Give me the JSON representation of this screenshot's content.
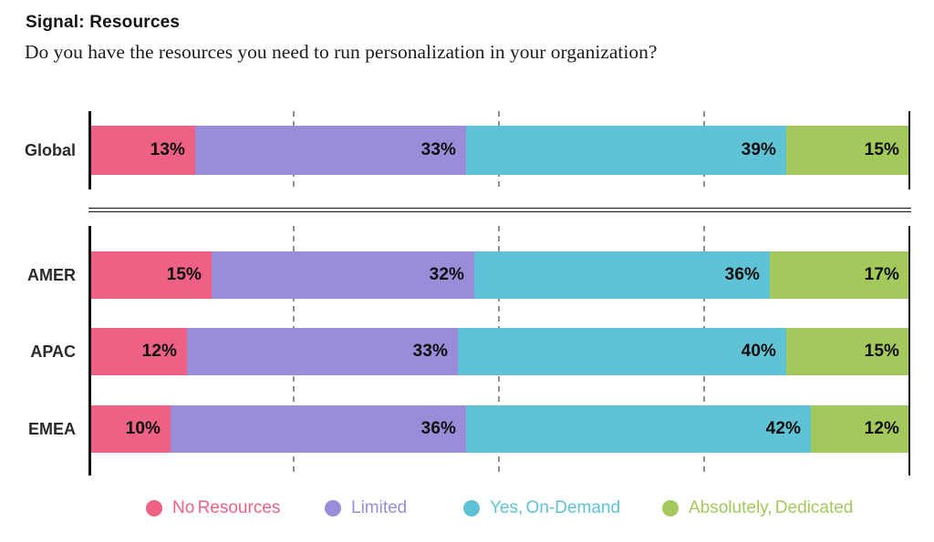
{
  "header": {
    "title": "Signal: Resources",
    "question": "Do you have the resources you need to run personalization in your organization?"
  },
  "chart_data": {
    "type": "bar",
    "orientation": "horizontal",
    "stacked": true,
    "value_unit": "%",
    "xlim": [
      0,
      100
    ],
    "gridlines_at_percent": [
      25,
      50,
      75
    ],
    "grid_style": "dashed-vertical",
    "legend_position": "bottom",
    "data_label_format": "{value}%",
    "categories": [
      "Global",
      "AMER",
      "APAC",
      "EMEA"
    ],
    "row_groups": [
      [
        "Global"
      ],
      [
        "AMER",
        "APAC",
        "EMEA"
      ]
    ],
    "series": [
      {
        "name": "No Resources",
        "color": "#ED6284",
        "values": [
          13,
          15,
          12,
          10
        ]
      },
      {
        "name": "Limited",
        "color": "#9A8CD8",
        "values": [
          33,
          32,
          33,
          36
        ]
      },
      {
        "name": "Yes, On-Demand",
        "color": "#60C2D5",
        "values": [
          39,
          36,
          40,
          42
        ]
      },
      {
        "name": "Absolutely, Dedicated",
        "color": "#A3C95C",
        "values": [
          15,
          17,
          15,
          12
        ]
      }
    ]
  },
  "legend": {
    "items": [
      {
        "label": "No Resources",
        "color": "#ED6284"
      },
      {
        "label": "Limited",
        "color": "#9A8CD8"
      },
      {
        "label": "Yes, On-Demand",
        "color": "#60C2D5"
      },
      {
        "label": "Absolutely, Dedicated",
        "color": "#A3C95C"
      }
    ]
  }
}
